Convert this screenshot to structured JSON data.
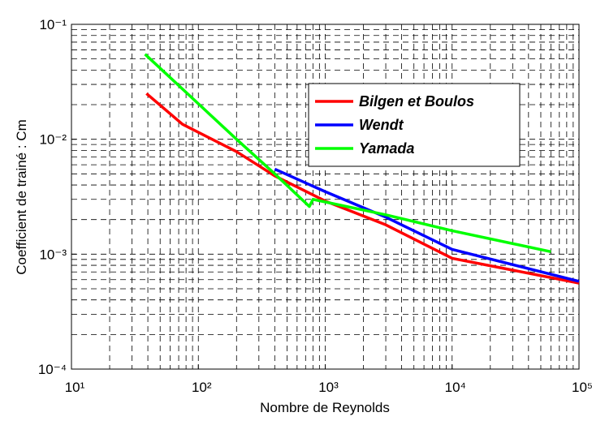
{
  "chart_data": {
    "type": "line",
    "xlabel": "Nombre de Reynolds",
    "ylabel": "Coefficient de trainé : Cm",
    "xscale": "log",
    "yscale": "log",
    "grid": true,
    "legend": "upper right",
    "xlim": [
      10,
      100000
    ],
    "ylim": [
      0.0001,
      0.1
    ],
    "xticks": [
      {
        "value": 10,
        "label": "10¹"
      },
      {
        "value": 100,
        "label": "10²"
      },
      {
        "value": 1000,
        "label": "10³"
      },
      {
        "value": 10000,
        "label": "10⁴"
      },
      {
        "value": 100000,
        "label": "10⁵"
      }
    ],
    "yticks": [
      {
        "value": 0.0001,
        "label": "10⁻⁴"
      },
      {
        "value": 0.001,
        "label": "10⁻³"
      },
      {
        "value": 0.01,
        "label": "10⁻²"
      },
      {
        "value": 0.1,
        "label": "10⁻¹"
      }
    ],
    "xminorticks": [
      20,
      30,
      40,
      50,
      60,
      70,
      80,
      90,
      200,
      300,
      400,
      500,
      600,
      700,
      800,
      900,
      2000,
      3000,
      4000,
      5000,
      6000,
      7000,
      8000,
      9000,
      20000,
      30000,
      40000,
      50000,
      60000,
      70000,
      80000,
      90000
    ],
    "yminorticks": [
      0.0002,
      0.0003,
      0.0004,
      0.0005,
      0.0006,
      0.0007,
      0.0008,
      0.0009,
      0.002,
      0.003,
      0.004,
      0.005,
      0.006,
      0.007,
      0.008,
      0.009,
      0.02,
      0.03,
      0.04,
      0.05,
      0.06,
      0.07,
      0.08,
      0.09
    ],
    "series": [
      {
        "name": "Bilgen et Boulos",
        "color": "#ff0000",
        "x": [
          39,
          75,
          200,
          400,
          1000,
          3000,
          10000,
          100000
        ],
        "values": [
          0.025,
          0.0135,
          0.0078,
          0.0048,
          0.0029,
          0.0018,
          0.00092,
          0.00056
        ]
      },
      {
        "name": "Wendt",
        "color": "#0000ff",
        "x": [
          400,
          1000,
          3000,
          10000,
          100000
        ],
        "values": [
          0.0055,
          0.0035,
          0.0021,
          0.0011,
          0.00058
        ]
      },
      {
        "name": "Yamada",
        "color": "#00ff00",
        "x": [
          38,
          200,
          400,
          750,
          800,
          3000,
          10000,
          60000
        ],
        "values": [
          0.055,
          0.01,
          0.005,
          0.0026,
          0.003,
          0.0022,
          0.0016,
          0.00105
        ]
      }
    ]
  }
}
